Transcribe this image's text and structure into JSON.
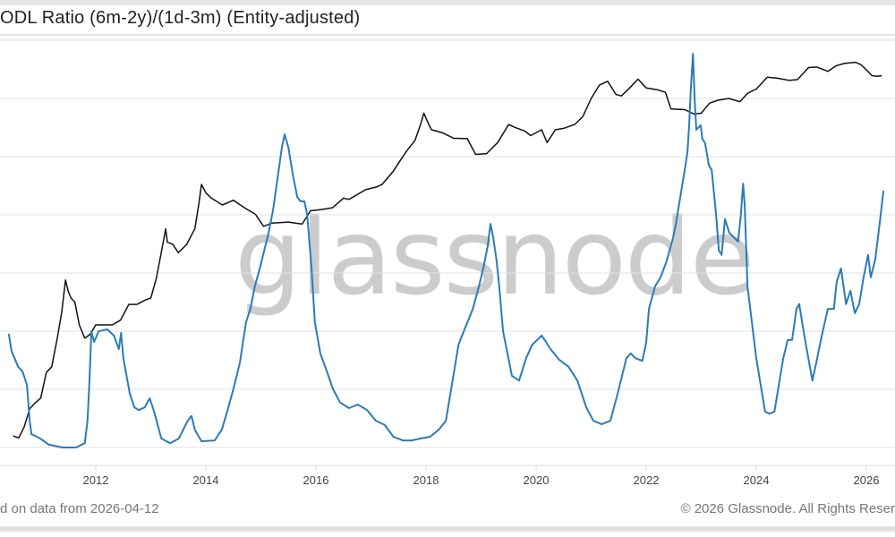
{
  "header": {
    "title": "ODL Ratio (6m-2y)/(1d-3m) (Entity-adjusted)"
  },
  "watermark": "glassnode",
  "footer": {
    "left": "d on data from 2026-04-12",
    "right": "© 2026 Glassnode. All Rights Reser"
  },
  "chart_data": {
    "type": "line",
    "title": "ODL Ratio (6m-2y)/(1d-3m) (Entity-adjusted)",
    "x_ticks": [
      "2012",
      "2014",
      "2016",
      "2018",
      "2020",
      "2022",
      "2024",
      "2026"
    ],
    "xlim": [
      2010.26,
      2026.52
    ],
    "grid": true,
    "legend": "none",
    "colors": {
      "ratio": "#2b7bb9",
      "price": "#111111",
      "grid": "#e2e2e2"
    },
    "series": [
      {
        "key": "price",
        "color": "#111111",
        "yscale": "log",
        "ylim": [
          0.045,
          280000
        ],
        "points": [
          [
            2010.5,
            0.07
          ],
          [
            2010.6,
            0.065
          ],
          [
            2010.7,
            0.1
          ],
          [
            2010.8,
            0.2
          ],
          [
            2010.9,
            0.25
          ],
          [
            2011.0,
            0.3
          ],
          [
            2011.1,
            0.8
          ],
          [
            2011.2,
            1
          ],
          [
            2011.3,
            3
          ],
          [
            2011.38,
            8
          ],
          [
            2011.45,
            28
          ],
          [
            2011.5,
            18
          ],
          [
            2011.55,
            14
          ],
          [
            2011.62,
            12
          ],
          [
            2011.7,
            5
          ],
          [
            2011.8,
            3
          ],
          [
            2011.9,
            3.5
          ],
          [
            2012.0,
            5
          ],
          [
            2012.15,
            5
          ],
          [
            2012.3,
            5
          ],
          [
            2012.45,
            6
          ],
          [
            2012.6,
            11
          ],
          [
            2012.75,
            11
          ],
          [
            2012.9,
            13
          ],
          [
            2013.0,
            14
          ],
          [
            2013.1,
            30
          ],
          [
            2013.2,
            90
          ],
          [
            2013.27,
            200
          ],
          [
            2013.3,
            120
          ],
          [
            2013.4,
            110
          ],
          [
            2013.5,
            80
          ],
          [
            2013.65,
            110
          ],
          [
            2013.8,
            200
          ],
          [
            2013.87,
            500
          ],
          [
            2013.92,
            1100
          ],
          [
            2014.0,
            800
          ],
          [
            2014.1,
            650
          ],
          [
            2014.3,
            500
          ],
          [
            2014.5,
            600
          ],
          [
            2014.7,
            450
          ],
          [
            2014.9,
            350
          ],
          [
            2015.05,
            220
          ],
          [
            2015.2,
            250
          ],
          [
            2015.5,
            260
          ],
          [
            2015.75,
            240
          ],
          [
            2015.9,
            400
          ],
          [
            2016.1,
            420
          ],
          [
            2016.3,
            450
          ],
          [
            2016.5,
            650
          ],
          [
            2016.6,
            620
          ],
          [
            2016.9,
            900
          ],
          [
            2017.1,
            1000
          ],
          [
            2017.2,
            1100
          ],
          [
            2017.4,
            1800
          ],
          [
            2017.5,
            2500
          ],
          [
            2017.65,
            4000
          ],
          [
            2017.8,
            6000
          ],
          [
            2017.9,
            11000
          ],
          [
            2017.96,
            17000
          ],
          [
            2018.05,
            11000
          ],
          [
            2018.1,
            9000
          ],
          [
            2018.3,
            8000
          ],
          [
            2018.5,
            6500
          ],
          [
            2018.75,
            6400
          ],
          [
            2018.9,
            3500
          ],
          [
            2019.1,
            3600
          ],
          [
            2019.3,
            5500
          ],
          [
            2019.5,
            11000
          ],
          [
            2019.6,
            10000
          ],
          [
            2019.8,
            8500
          ],
          [
            2019.9,
            7200
          ],
          [
            2020.1,
            9000
          ],
          [
            2020.2,
            5500
          ],
          [
            2020.35,
            9000
          ],
          [
            2020.5,
            9500
          ],
          [
            2020.7,
            11000
          ],
          [
            2020.85,
            15000
          ],
          [
            2021.0,
            30000
          ],
          [
            2021.15,
            50000
          ],
          [
            2021.3,
            58000
          ],
          [
            2021.45,
            35000
          ],
          [
            2021.55,
            33000
          ],
          [
            2021.7,
            45000
          ],
          [
            2021.85,
            63000
          ],
          [
            2022.0,
            45000
          ],
          [
            2022.2,
            42000
          ],
          [
            2022.35,
            38000
          ],
          [
            2022.45,
            20000
          ],
          [
            2022.7,
            19500
          ],
          [
            2022.87,
            16500
          ],
          [
            2023.0,
            17000
          ],
          [
            2023.15,
            25000
          ],
          [
            2023.3,
            28000
          ],
          [
            2023.5,
            30000
          ],
          [
            2023.7,
            26500
          ],
          [
            2023.85,
            37000
          ],
          [
            2024.0,
            43000
          ],
          [
            2024.2,
            68000
          ],
          [
            2024.4,
            65000
          ],
          [
            2024.6,
            60000
          ],
          [
            2024.75,
            62000
          ],
          [
            2024.95,
            98000
          ],
          [
            2025.1,
            100000
          ],
          [
            2025.3,
            85000
          ],
          [
            2025.45,
            105000
          ],
          [
            2025.6,
            115000
          ],
          [
            2025.8,
            120000
          ],
          [
            2025.9,
            110000
          ],
          [
            2026.0,
            90000
          ],
          [
            2026.1,
            72000
          ],
          [
            2026.2,
            70000
          ],
          [
            2026.28,
            72000
          ]
        ]
      },
      {
        "key": "ratio",
        "color": "#2b7bb9",
        "yscale": "linear",
        "ylim": [
          0,
          103.4
        ],
        "points": [
          [
            2010.42,
            28.9
          ],
          [
            2010.47,
            24.5
          ],
          [
            2010.59,
            20.5
          ],
          [
            2010.67,
            19.3
          ],
          [
            2010.75,
            15.9
          ],
          [
            2010.8,
            6.8
          ],
          [
            2010.83,
            3.4
          ],
          [
            2010.99,
            2.3
          ],
          [
            2011.15,
            0.7
          ],
          [
            2011.4,
            0
          ],
          [
            2011.64,
            0
          ],
          [
            2011.8,
            1.1
          ],
          [
            2011.85,
            6.8
          ],
          [
            2011.89,
            18.2
          ],
          [
            2011.92,
            29.5
          ],
          [
            2011.97,
            26.8
          ],
          [
            2012.05,
            29.5
          ],
          [
            2012.21,
            30.0
          ],
          [
            2012.33,
            28.4
          ],
          [
            2012.42,
            25.0
          ],
          [
            2012.46,
            29.1
          ],
          [
            2012.5,
            22.7
          ],
          [
            2012.62,
            13.6
          ],
          [
            2012.7,
            10.2
          ],
          [
            2012.78,
            9.5
          ],
          [
            2012.89,
            10.2
          ],
          [
            2012.98,
            12.5
          ],
          [
            2013.06,
            9.1
          ],
          [
            2013.19,
            2.3
          ],
          [
            2013.35,
            1.1
          ],
          [
            2013.51,
            2.3
          ],
          [
            2013.67,
            6.8
          ],
          [
            2013.74,
            8.0
          ],
          [
            2013.8,
            4.5
          ],
          [
            2013.92,
            1.6
          ],
          [
            2014.16,
            1.8
          ],
          [
            2014.29,
            4.5
          ],
          [
            2014.41,
            10.2
          ],
          [
            2014.52,
            15.9
          ],
          [
            2014.62,
            21.6
          ],
          [
            2014.68,
            27.3
          ],
          [
            2014.73,
            31.8
          ],
          [
            2014.81,
            35.2
          ],
          [
            2014.89,
            40.9
          ],
          [
            2014.98,
            45.5
          ],
          [
            2015.06,
            50.0
          ],
          [
            2015.14,
            54.5
          ],
          [
            2015.22,
            60.2
          ],
          [
            2015.3,
            68.2
          ],
          [
            2015.38,
            76.1
          ],
          [
            2015.43,
            79.5
          ],
          [
            2015.5,
            76.1
          ],
          [
            2015.58,
            69.3
          ],
          [
            2015.66,
            63.6
          ],
          [
            2015.72,
            62.5
          ],
          [
            2015.79,
            62.5
          ],
          [
            2015.84,
            59.1
          ],
          [
            2015.92,
            45.5
          ],
          [
            2015.98,
            31.8
          ],
          [
            2016.08,
            23.9
          ],
          [
            2016.2,
            19.3
          ],
          [
            2016.31,
            14.8
          ],
          [
            2016.44,
            11.4
          ],
          [
            2016.6,
            10.0
          ],
          [
            2016.76,
            10.9
          ],
          [
            2016.93,
            9.5
          ],
          [
            2017.09,
            6.8
          ],
          [
            2017.25,
            5.7
          ],
          [
            2017.41,
            2.7
          ],
          [
            2017.58,
            1.8
          ],
          [
            2017.74,
            1.8
          ],
          [
            2017.9,
            2.3
          ],
          [
            2018.07,
            2.7
          ],
          [
            2018.23,
            4.5
          ],
          [
            2018.36,
            6.8
          ],
          [
            2018.47,
            15.9
          ],
          [
            2018.59,
            26.1
          ],
          [
            2018.72,
            30.7
          ],
          [
            2018.85,
            35.2
          ],
          [
            2018.96,
            40.9
          ],
          [
            2019.04,
            45.5
          ],
          [
            2019.12,
            51.1
          ],
          [
            2019.17,
            56.8
          ],
          [
            2019.22,
            53.4
          ],
          [
            2019.28,
            47.7
          ],
          [
            2019.33,
            40.9
          ],
          [
            2019.4,
            29.5
          ],
          [
            2019.48,
            23.9
          ],
          [
            2019.56,
            18.2
          ],
          [
            2019.69,
            17.0
          ],
          [
            2019.82,
            22.7
          ],
          [
            2019.93,
            26.1
          ],
          [
            2020.02,
            27.3
          ],
          [
            2020.1,
            28.4
          ],
          [
            2020.18,
            26.8
          ],
          [
            2020.26,
            25.0
          ],
          [
            2020.42,
            22.3
          ],
          [
            2020.59,
            20.5
          ],
          [
            2020.75,
            17.0
          ],
          [
            2020.83,
            13.6
          ],
          [
            2020.91,
            10.2
          ],
          [
            2021.04,
            6.8
          ],
          [
            2021.19,
            5.9
          ],
          [
            2021.35,
            6.8
          ],
          [
            2021.48,
            13.6
          ],
          [
            2021.64,
            22.7
          ],
          [
            2021.72,
            23.9
          ],
          [
            2021.8,
            22.7
          ],
          [
            2021.93,
            22.0
          ],
          [
            2022.0,
            26.6
          ],
          [
            2022.05,
            35.2
          ],
          [
            2022.16,
            40.9
          ],
          [
            2022.26,
            43.2
          ],
          [
            2022.37,
            47.3
          ],
          [
            2022.49,
            53.4
          ],
          [
            2022.54,
            56.8
          ],
          [
            2022.62,
            63.6
          ],
          [
            2022.7,
            70.5
          ],
          [
            2022.75,
            75.0
          ],
          [
            2022.78,
            81.8
          ],
          [
            2022.81,
            90.9
          ],
          [
            2022.85,
            100
          ],
          [
            2022.88,
            88.6
          ],
          [
            2022.91,
            80.7
          ],
          [
            2022.99,
            81.8
          ],
          [
            2023.02,
            78.4
          ],
          [
            2023.07,
            77.3
          ],
          [
            2023.14,
            71.6
          ],
          [
            2023.19,
            70.5
          ],
          [
            2023.27,
            59.1
          ],
          [
            2023.32,
            50.0
          ],
          [
            2023.37,
            48.9
          ],
          [
            2023.43,
            58.0
          ],
          [
            2023.51,
            54.5
          ],
          [
            2023.59,
            53.4
          ],
          [
            2023.67,
            52.3
          ],
          [
            2023.72,
            59.1
          ],
          [
            2023.76,
            67.0
          ],
          [
            2023.79,
            61.4
          ],
          [
            2023.84,
            40.9
          ],
          [
            2023.92,
            31.8
          ],
          [
            2024.0,
            22.7
          ],
          [
            2024.08,
            15.9
          ],
          [
            2024.16,
            9.1
          ],
          [
            2024.24,
            8.6
          ],
          [
            2024.33,
            9.1
          ],
          [
            2024.41,
            15.9
          ],
          [
            2024.49,
            22.7
          ],
          [
            2024.57,
            27.3
          ],
          [
            2024.65,
            27.3
          ],
          [
            2024.73,
            35.2
          ],
          [
            2024.78,
            36.4
          ],
          [
            2024.86,
            29.5
          ],
          [
            2024.93,
            23.9
          ],
          [
            2025.02,
            17.0
          ],
          [
            2025.09,
            21.6
          ],
          [
            2025.19,
            28.4
          ],
          [
            2025.3,
            35.2
          ],
          [
            2025.41,
            35.2
          ],
          [
            2025.46,
            42.0
          ],
          [
            2025.54,
            45.5
          ],
          [
            2025.63,
            36.4
          ],
          [
            2025.71,
            39.8
          ],
          [
            2025.79,
            34.1
          ],
          [
            2025.87,
            36.4
          ],
          [
            2025.95,
            43.2
          ],
          [
            2026.03,
            48.9
          ],
          [
            2026.08,
            43.2
          ],
          [
            2026.16,
            47.7
          ],
          [
            2026.24,
            56.8
          ],
          [
            2026.28,
            61.4
          ],
          [
            2026.31,
            65.2
          ]
        ]
      }
    ]
  }
}
